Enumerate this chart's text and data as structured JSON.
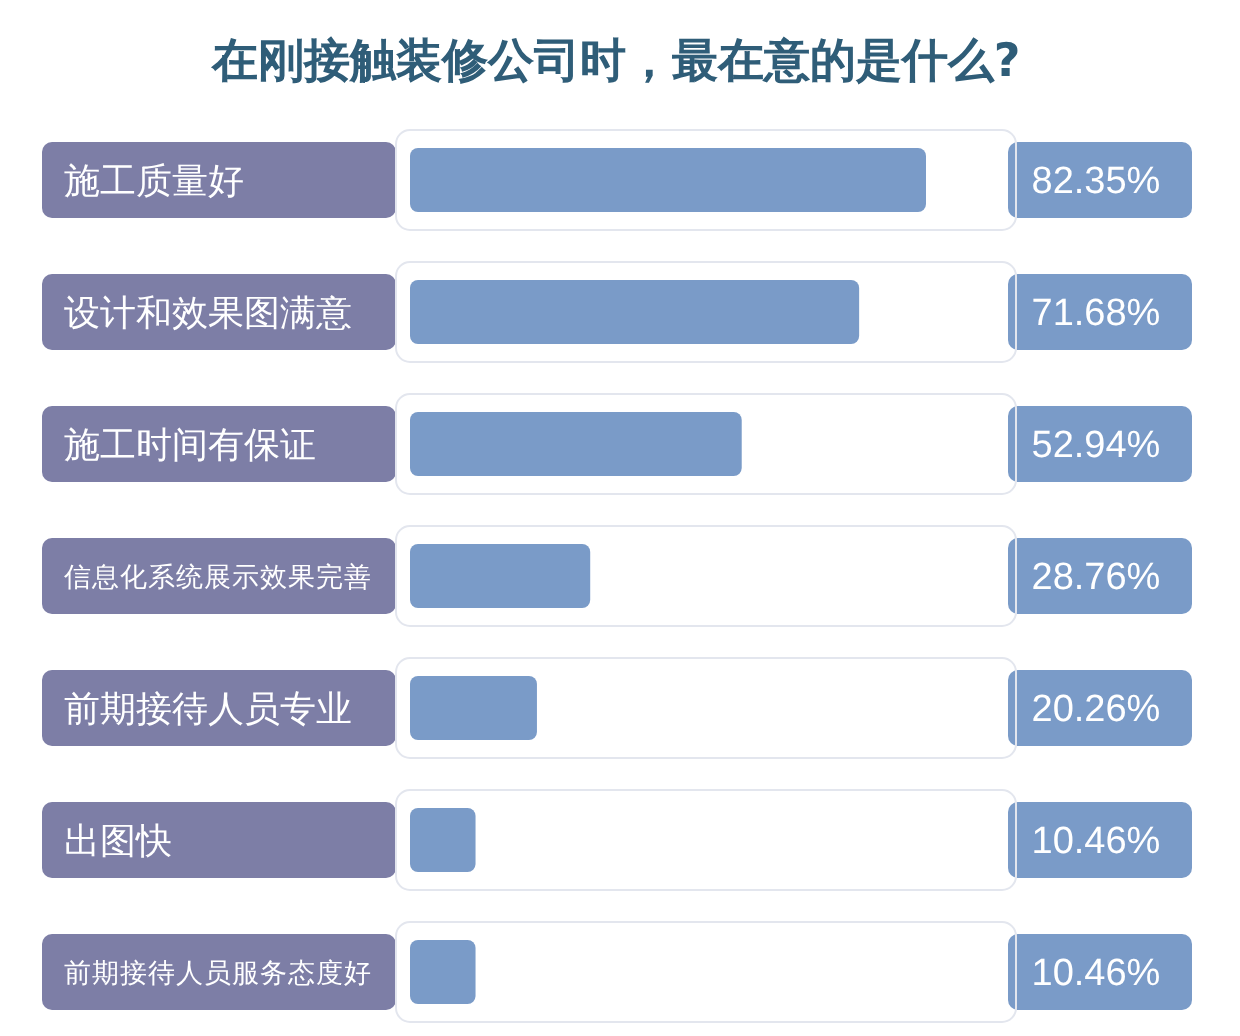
{
  "chart_data": {
    "type": "bar",
    "orientation": "horizontal",
    "title": "在刚接触装修公司时，最在意的是什么?",
    "categories": [
      "施工质量好",
      "设计和效果图满意",
      "施工时间有保证",
      "信息化系统展示效果完善",
      "前期接待人员专业",
      "出图快",
      "前期接待人员服务态度好"
    ],
    "values": [
      82.35,
      71.68,
      52.94,
      28.76,
      20.26,
      10.46,
      10.46
    ],
    "value_labels": [
      "82.35%",
      "71.68%",
      "52.94%",
      "28.76%",
      "20.26%",
      "10.46%",
      "10.46%"
    ],
    "color": "#7a9bc8",
    "tick_labels": "y"
  }
}
